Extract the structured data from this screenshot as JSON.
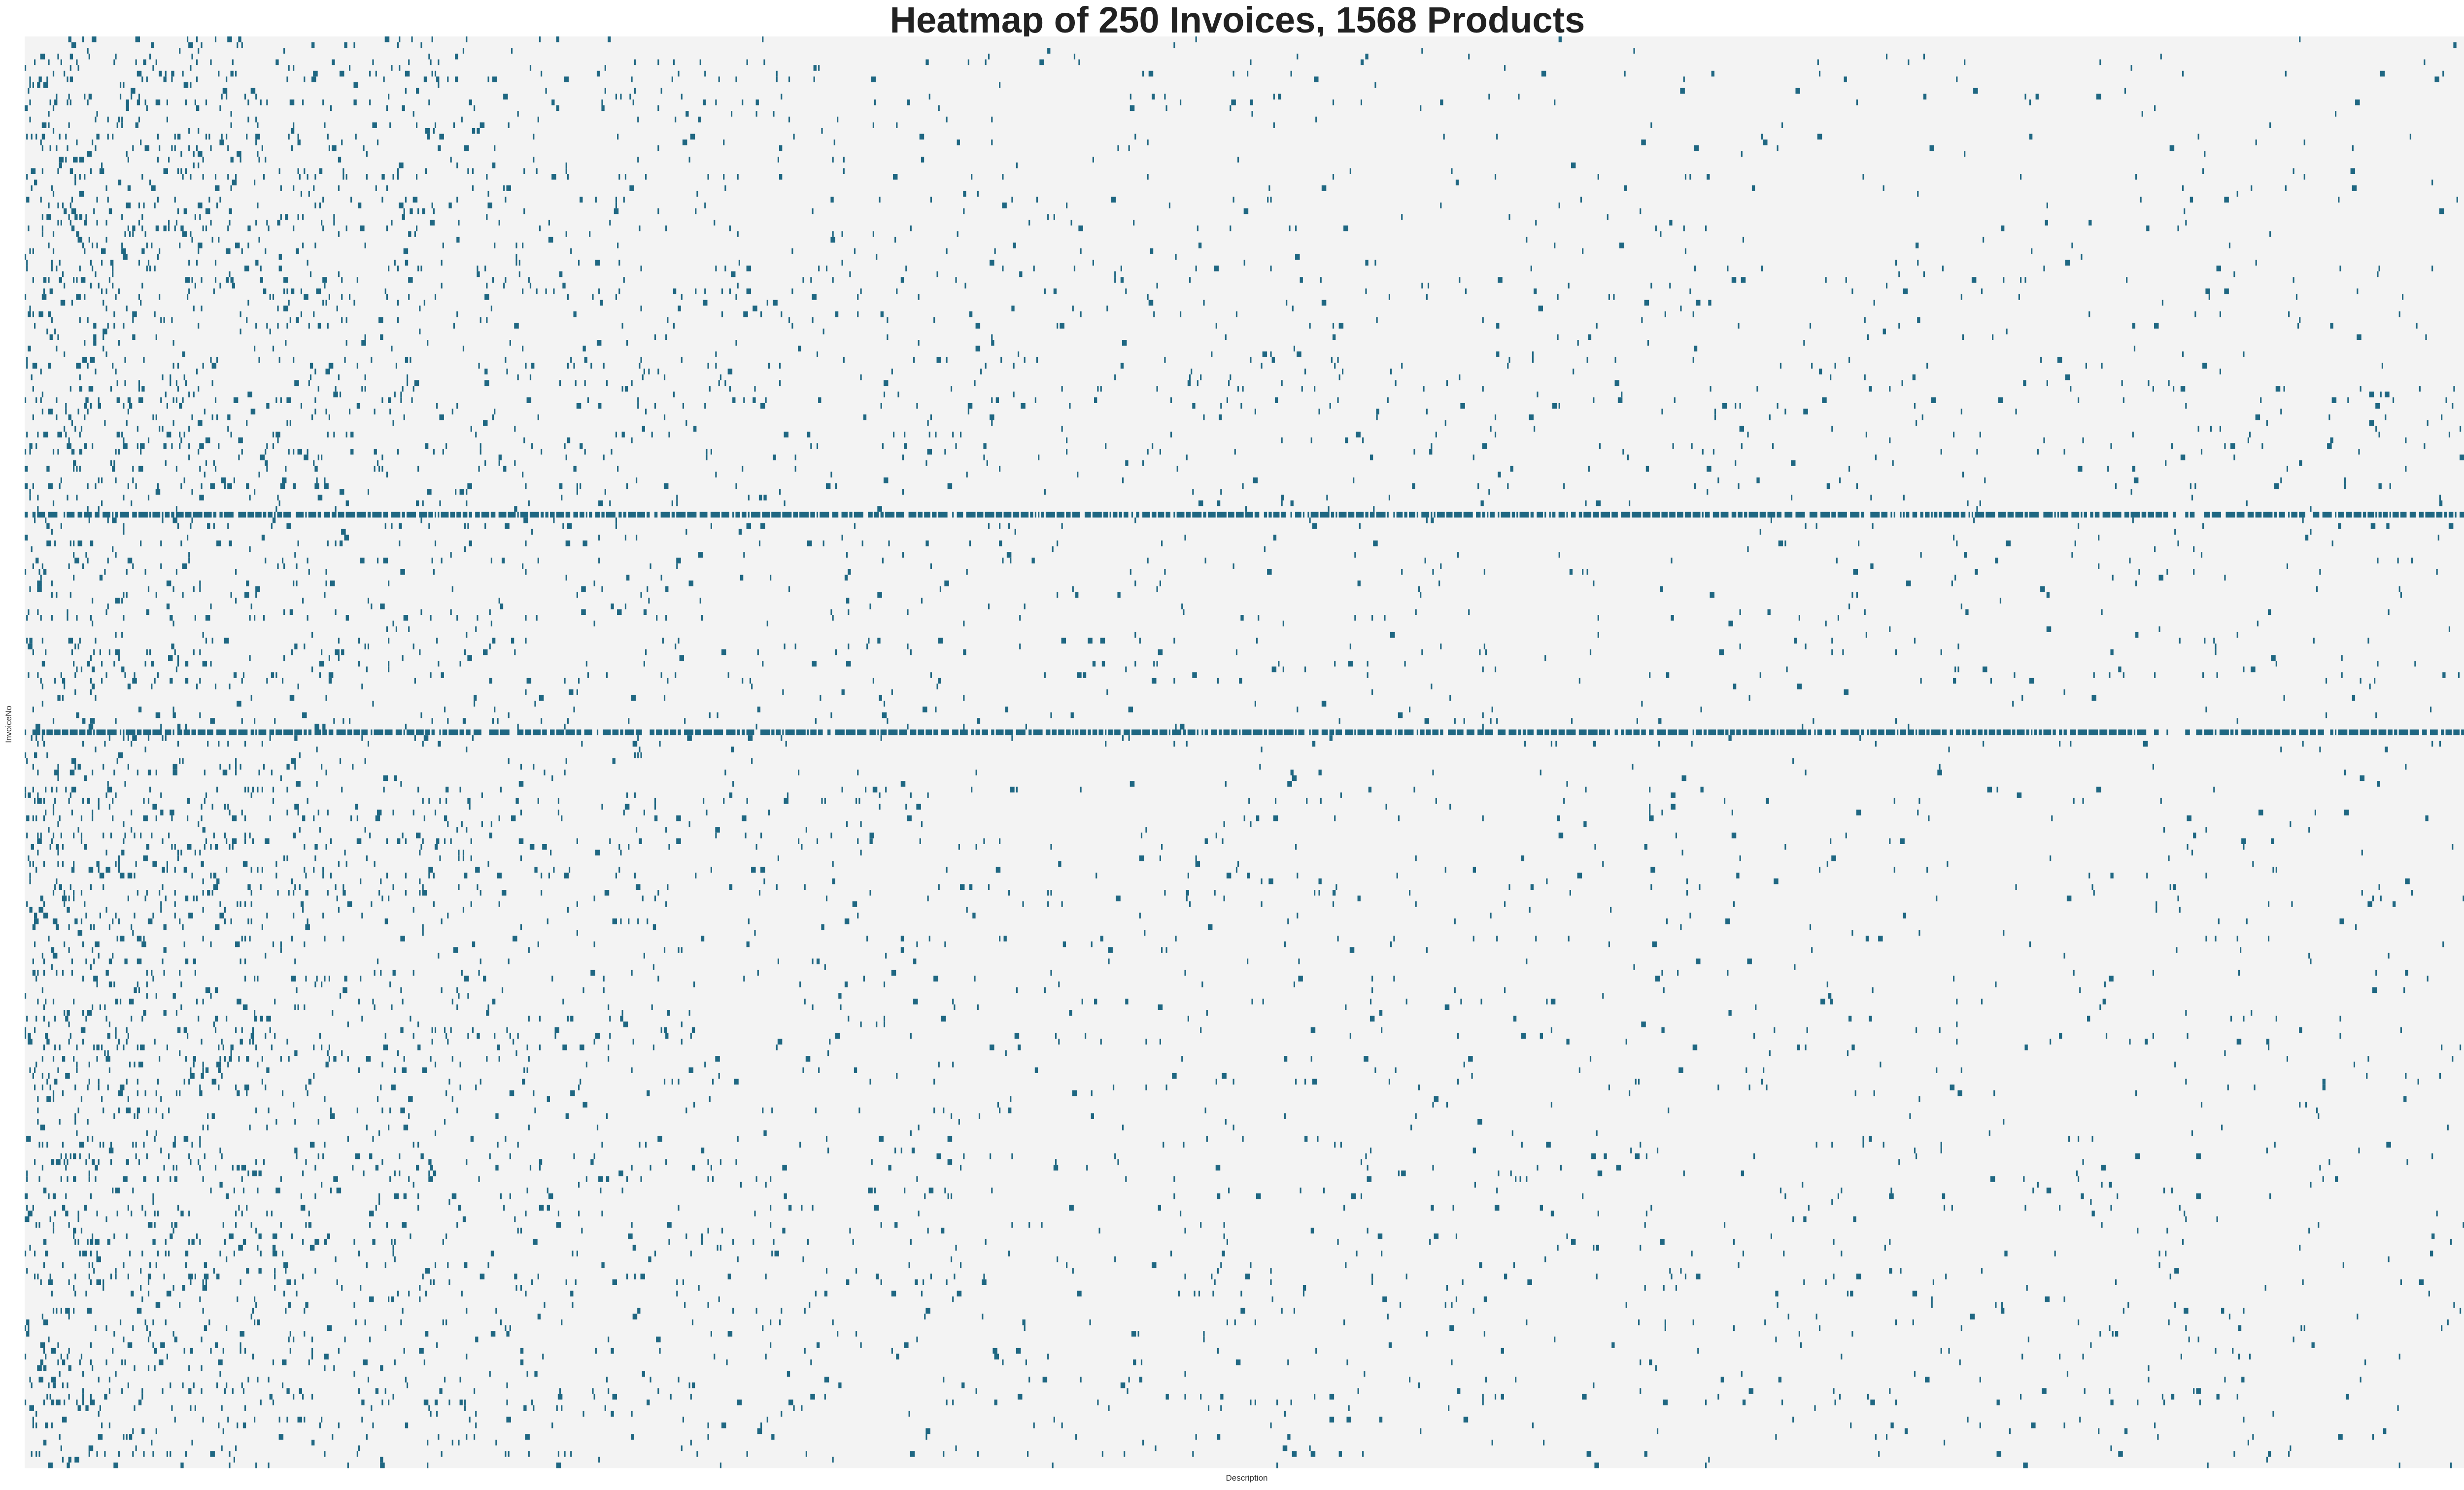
{
  "chart_data": {
    "type": "heatmap",
    "title": "Heatmap of 250 Invoices, 1568 Products",
    "xlabel": "Description",
    "ylabel": "InvoiceNo",
    "n_rows": 250,
    "n_cols": 1568,
    "x_tick_labels": [],
    "y_tick_labels": [],
    "value_encoding": "binary (product present in invoice)",
    "colors": {
      "background": "#f3f3f3",
      "filled": "#1f6782"
    },
    "dense_rows": [
      83,
      121
    ],
    "density_profile": "Purchases concentrated in low-index products (left), sparse toward high-index products (right); rows 83 and 121 are near-full invoices",
    "row_activity_hints": [
      {
        "row_range": [
          0,
          40
        ],
        "left_density": 0.09,
        "tail_density": 0.005
      },
      {
        "row_range": [
          40,
          80
        ],
        "left_density": 0.08,
        "tail_density": 0.012
      },
      {
        "row_range": [
          80,
          125
        ],
        "left_density": 0.06,
        "tail_density": 0.008
      },
      {
        "row_range": [
          125,
          190
        ],
        "left_density": 0.08,
        "tail_density": 0.007
      },
      {
        "row_range": [
          190,
          250
        ],
        "left_density": 0.07,
        "tail_density": 0.009
      }
    ]
  }
}
